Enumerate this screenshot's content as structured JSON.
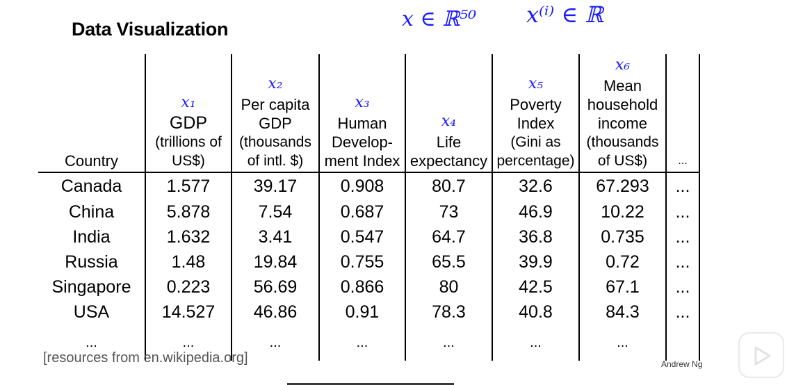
{
  "slide": {
    "title": "Data Visualization",
    "annotations": {
      "feature_space": "x ∈ ℝ⁵⁰",
      "per_example": "x⁽ⁱ⁾ ∈ ℝ"
    },
    "table": {
      "headers": [
        {
          "var": "",
          "lines": [
            "Country"
          ]
        },
        {
          "var": "x₁",
          "lines": [
            "GDP",
            "(trillions of",
            "US$)"
          ]
        },
        {
          "var": "x₂",
          "lines": [
            "Per capita",
            "GDP",
            "(thousands",
            "of intl. $)"
          ]
        },
        {
          "var": "x₃",
          "lines": [
            "Human",
            "Develop-",
            "ment Index"
          ]
        },
        {
          "var": "x₄",
          "lines": [
            "Life",
            "expectancy"
          ]
        },
        {
          "var": "x₅",
          "lines": [
            "Poverty",
            "Index",
            "(Gini as",
            "percentage)"
          ]
        },
        {
          "var": "x₆",
          "lines": [
            "Mean",
            "household",
            "income",
            "(thousands",
            "of US$)"
          ]
        },
        {
          "var": "",
          "lines": [
            "..."
          ]
        }
      ],
      "rows": [
        [
          "Canada",
          "1.577",
          "39.17",
          "0.908",
          "80.7",
          "32.6",
          "67.293",
          "..."
        ],
        [
          "China",
          "5.878",
          "7.54",
          "0.687",
          "73",
          "46.9",
          "10.22",
          "..."
        ],
        [
          "India",
          "1.632",
          "3.41",
          "0.547",
          "64.7",
          "36.8",
          "0.735",
          "..."
        ],
        [
          "Russia",
          "1.48",
          "19.84",
          "0.755",
          "65.5",
          "39.9",
          "0.72",
          "..."
        ],
        [
          "Singapore",
          "0.223",
          "56.69",
          "0.866",
          "80",
          "42.5",
          "67.1",
          "..."
        ],
        [
          "USA",
          "14.527",
          "46.86",
          "0.91",
          "78.3",
          "40.8",
          "84.3",
          "..."
        ],
        [
          "...",
          "...",
          "...",
          "...",
          "...",
          "...",
          "...",
          ""
        ]
      ]
    },
    "source": "[resources from en.wikipedia.org]",
    "author": "Andrew Ng"
  },
  "player": {
    "play_icon": "play-icon",
    "colors": {
      "ink": "#1a1aff",
      "border": "#e9e9e9"
    }
  }
}
